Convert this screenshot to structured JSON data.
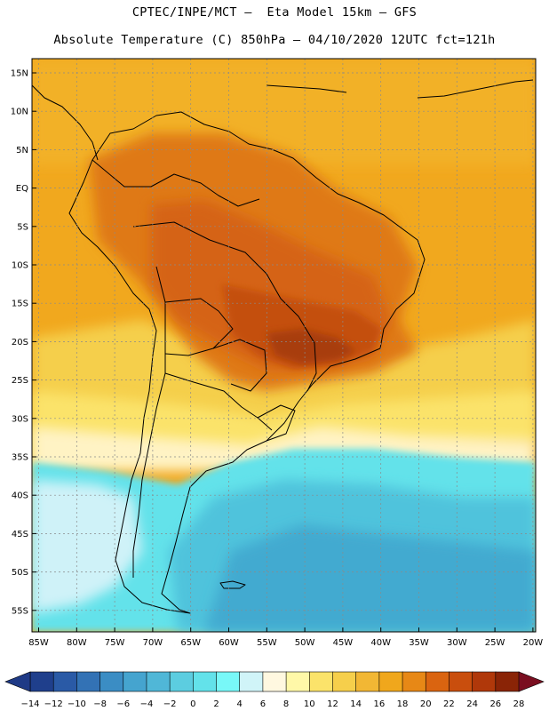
{
  "title": {
    "line1": "CPTEC/INPE/MCT –  Eta Model 15km – GFS",
    "line2": "Absolute Temperature (C) 850hPa – 04/10/2020 12UTC fct=121h"
  },
  "lat_labels": [
    "15N",
    "10N",
    "5N",
    "EQ",
    "5S",
    "10S",
    "15S",
    "20S",
    "25S",
    "30S",
    "35S",
    "40S",
    "45S",
    "50S",
    "55S"
  ],
  "lon_labels": [
    "85W",
    "80W",
    "75W",
    "70W",
    "65W",
    "60W",
    "55W",
    "50W",
    "45W",
    "40W",
    "35W",
    "30W",
    "25W",
    "20W"
  ],
  "colorbar": {
    "labels": [
      "-14",
      "-12",
      "-10",
      "-8",
      "-6",
      "-4",
      "-2",
      "0",
      "2",
      "4",
      "6",
      "8",
      "10",
      "12",
      "14",
      "16",
      "18",
      "20",
      "22",
      "24",
      "26",
      "28"
    ],
    "colors": [
      "#1f3f8c",
      "#2a5aa6",
      "#3372b5",
      "#3b8dc4",
      "#45a4cf",
      "#50b7d7",
      "#5ccde0",
      "#63e2ea",
      "#78f8f8",
      "#d0f4f8",
      "#fff8e0",
      "#fff8a8",
      "#fbe36a",
      "#f6cf4b",
      "#f2b734",
      "#f0a71c",
      "#e78816",
      "#da6410",
      "#c94e0d",
      "#b0380a",
      "#8a2406"
    ],
    "left_extend_color": "#1f3a86",
    "right_extend_color": "#7a0e20"
  },
  "map_colors": {
    "ocean_warm": "#f1a81e",
    "ocean_north": "#f3b42c",
    "land_hot": "#df7914",
    "land_hotter": "#d56414",
    "core": "#c44f0d",
    "core_dark": "#a83d0a",
    "warm_band": "#f5cf4b",
    "yellow_band": "#fbe36a",
    "pale_band": "#fff3c4",
    "cold_cyan": "#63e2ea",
    "cold_mid": "#50c3dc",
    "cold_deep": "#43aad0",
    "andes_pale": "#cff2f8"
  },
  "border_color": "#000000"
}
